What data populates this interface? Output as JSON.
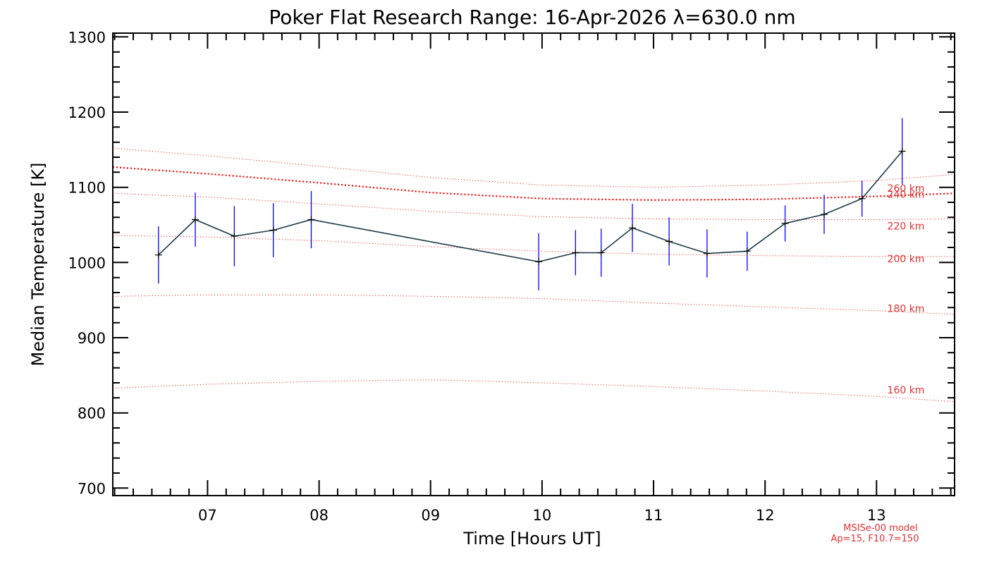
{
  "chart_data": {
    "type": "line",
    "title": "Poker Flat Research Range: 16-Apr-2026 λ=630.0 nm",
    "xlabel": "Time [Hours UT]",
    "ylabel": "Median Temperature [K]",
    "xlim": [
      6.15,
      13.7
    ],
    "ylim": [
      690,
      1305
    ],
    "x_ticks": [
      7,
      8,
      9,
      10,
      11,
      12,
      13
    ],
    "x_tick_labels": [
      "07",
      "08",
      "09",
      "10",
      "11",
      "12",
      "13"
    ],
    "y_ticks": [
      700,
      800,
      900,
      1000,
      1100,
      1200,
      1300
    ],
    "y_tick_labels": [
      "700",
      "800",
      "900",
      "1000",
      "1100",
      "1200",
      "1300"
    ],
    "measurements": {
      "name": "Median Temperature",
      "x": [
        6.56,
        6.89,
        7.24,
        7.59,
        7.93,
        9.97,
        10.3,
        10.53,
        10.81,
        11.14,
        11.48,
        11.84,
        12.18,
        12.53,
        12.87,
        13.23
      ],
      "y": [
        1010,
        1057,
        1035,
        1043,
        1057,
        1001,
        1013,
        1013,
        1046,
        1028,
        1012,
        1015,
        1052,
        1064,
        1085,
        1148
      ],
      "yerr": [
        38,
        36,
        40,
        36,
        38,
        38,
        30,
        32,
        32,
        32,
        32,
        26,
        24,
        26,
        24,
        44
      ],
      "line_color": "#000000",
      "error_color": "#0000ff"
    },
    "model_curves": [
      {
        "label": "160 km",
        "x": [
          6.15,
          7.0,
          8.0,
          9.0,
          10.0,
          11.0,
          12.0,
          13.0,
          13.7
        ],
        "y": [
          833,
          838,
          842,
          844,
          840,
          835,
          829,
          822,
          815
        ]
      },
      {
        "label": "180 km",
        "x": [
          6.15,
          7.0,
          8.0,
          9.0,
          10.0,
          11.0,
          12.0,
          13.0,
          13.7
        ],
        "y": [
          955,
          957,
          957,
          955,
          952,
          946,
          941,
          936,
          931
        ]
      },
      {
        "label": "200 km",
        "x": [
          6.15,
          7.0,
          8.0,
          9.0,
          10.0,
          11.0,
          12.0,
          13.0,
          13.7
        ],
        "y": [
          1036,
          1034,
          1029,
          1021,
          1015,
          1011,
          1009,
          1008,
          1008
        ]
      },
      {
        "label": "220 km",
        "x": [
          6.15,
          7.0,
          8.0,
          9.0,
          10.0,
          11.0,
          12.0,
          13.0,
          13.7
        ],
        "y": [
          1092,
          1087,
          1078,
          1068,
          1061,
          1058,
          1057,
          1057,
          1058
        ]
      },
      {
        "label": "240 km",
        "x": [
          6.15,
          7.0,
          8.0,
          9.0,
          10.0,
          11.0,
          12.0,
          13.0,
          13.7
        ],
        "y": [
          1127,
          1118,
          1106,
          1093,
          1085,
          1083,
          1084,
          1088,
          1092
        ],
        "emphasized": true
      },
      {
        "label": "260 km",
        "x": [
          6.15,
          7.0,
          8.0,
          9.0,
          10.0,
          11.0,
          12.0,
          13.0,
          13.7
        ],
        "y": [
          1152,
          1142,
          1128,
          1113,
          1103,
          1100,
          1103,
          1109,
          1117
        ]
      }
    ],
    "model_color": "#ff0000",
    "model_label_color": "#e03030",
    "model_note": [
      "MSISe-00 model",
      "Ap=15, F10.7=150"
    ]
  }
}
